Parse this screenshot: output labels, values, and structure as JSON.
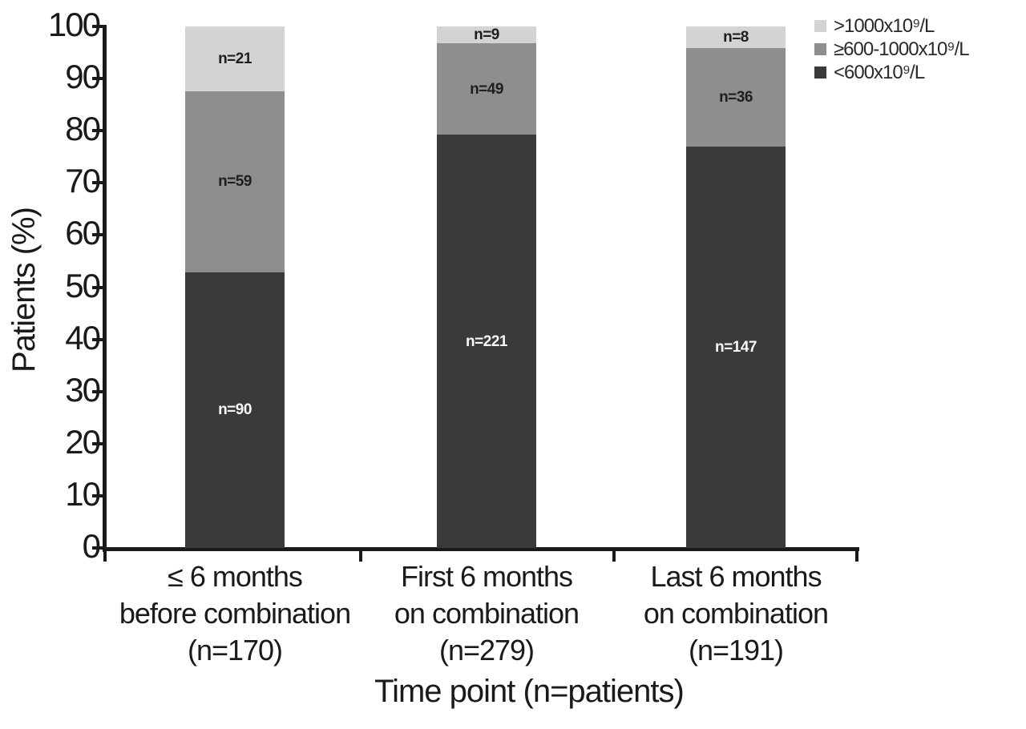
{
  "chart_data": {
    "type": "bar",
    "stacked": true,
    "title": "",
    "xlabel": "Time point (n=patients)",
    "ylabel": "Patients (%)",
    "ylim": [
      0,
      100
    ],
    "yticks": [
      "0",
      "10",
      "20",
      "30",
      "40",
      "50",
      "60",
      "70",
      "80",
      "90",
      "100"
    ],
    "grid": false,
    "legend_position": "top-right",
    "axis_color": "#1a1a1a",
    "legend": [
      {
        "label": ">1000x10⁹/L",
        "color": "#d3d3d3"
      },
      {
        "label": "≥600-1000x10⁹/L",
        "color": "#8e8e8e"
      },
      {
        "label": "<600x10⁹/L",
        "color": "#3a3a3c"
      }
    ],
    "bars": [
      {
        "category_lines": [
          "≤ 6 months",
          "before combination",
          "(n=170)"
        ],
        "category_total": 170,
        "segments": [
          {
            "series": "<600x10⁹/L",
            "label": "n=90",
            "n": 90,
            "pct": 52.9,
            "color": "#3a3a3c",
            "label_color": "#f8f8f8"
          },
          {
            "series": "≥600-1000x10⁹/L",
            "label": "n=59",
            "n": 59,
            "pct": 34.7,
            "color": "#8e8e8e",
            "label_color": "#1f1f1f"
          },
          {
            "series": ">1000x10⁹/L",
            "label": "n=21",
            "n": 21,
            "pct": 12.4,
            "color": "#d3d3d3",
            "label_color": "#1f1f1f"
          }
        ]
      },
      {
        "category_lines": [
          "First 6 months",
          "on combination",
          "(n=279)"
        ],
        "category_total": 279,
        "segments": [
          {
            "series": "<600x10⁹/L",
            "label": "n=221",
            "n": 221,
            "pct": 79.2,
            "color": "#3a3a3c",
            "label_color": "#f8f8f8"
          },
          {
            "series": "≥600-1000x10⁹/L",
            "label": "n=49",
            "n": 49,
            "pct": 17.6,
            "color": "#8e8e8e",
            "label_color": "#1f1f1f"
          },
          {
            "series": ">1000x10⁹/L",
            "label": "n=9",
            "n": 9,
            "pct": 3.2,
            "color": "#d3d3d3",
            "label_color": "#1f1f1f"
          }
        ]
      },
      {
        "category_lines": [
          "Last 6 months",
          "on combination",
          "(n=191)"
        ],
        "category_total": 191,
        "segments": [
          {
            "series": "<600x10⁹/L",
            "label": "n=147",
            "n": 147,
            "pct": 77.0,
            "color": "#3a3a3c",
            "label_color": "#f8f8f8"
          },
          {
            "series": "≥600-1000x10⁹/L",
            "label": "n=36",
            "n": 36,
            "pct": 18.8,
            "color": "#8e8e8e",
            "label_color": "#1f1f1f"
          },
          {
            "series": ">1000x10⁹/L",
            "label": "n=8",
            "n": 8,
            "pct": 4.2,
            "color": "#d3d3d3",
            "label_color": "#1f1f1f"
          }
        ]
      }
    ]
  }
}
